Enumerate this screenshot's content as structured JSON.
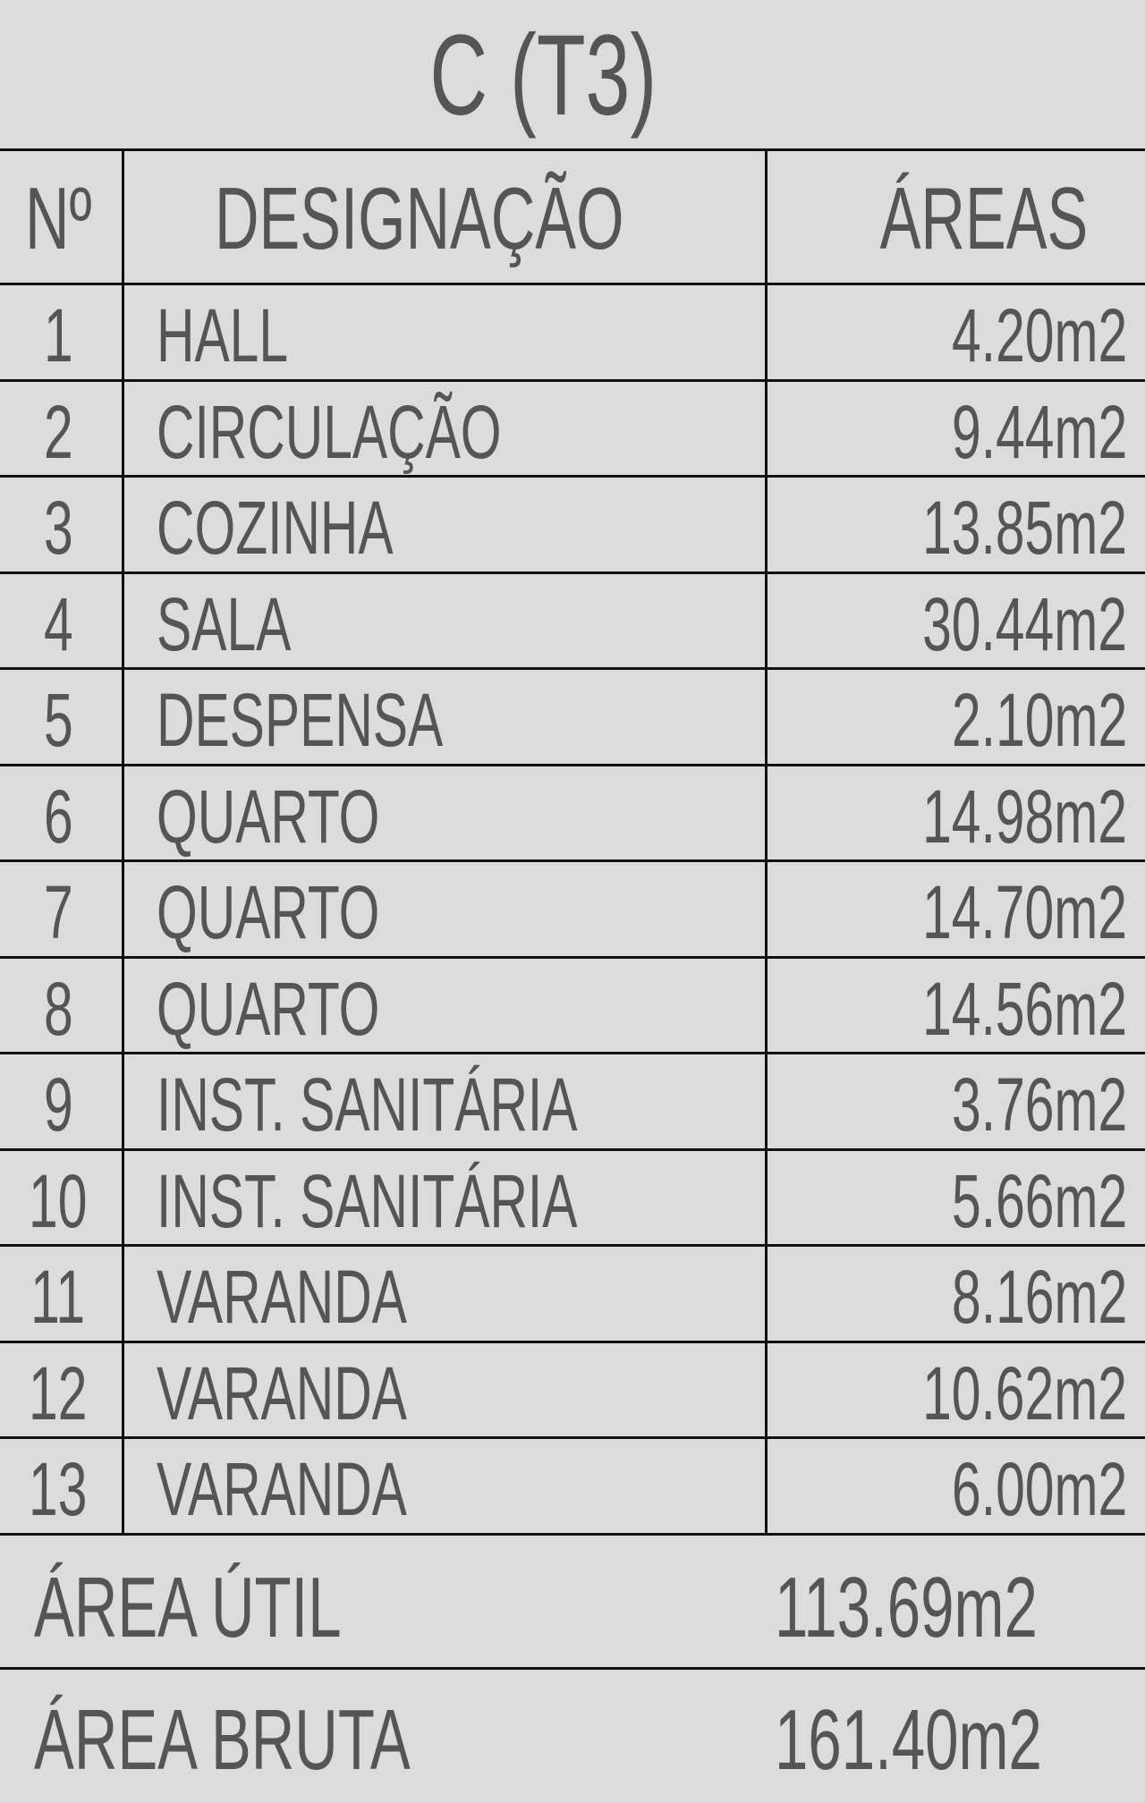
{
  "title": "C (T3)",
  "headers": {
    "number": "Nº",
    "designation": "DESIGNAÇÃO",
    "areas": "ÁREAS"
  },
  "rows": [
    {
      "n": "1",
      "name": "HALL",
      "area": "4.20m2"
    },
    {
      "n": "2",
      "name": "CIRCULAÇÃO",
      "area": "9.44m2"
    },
    {
      "n": "3",
      "name": "COZINHA",
      "area": "13.85m2"
    },
    {
      "n": "4",
      "name": "SALA",
      "area": "30.44m2"
    },
    {
      "n": "5",
      "name": "DESPENSA",
      "area": "2.10m2"
    },
    {
      "n": "6",
      "name": "QUARTO",
      "area": "14.98m2"
    },
    {
      "n": "7",
      "name": "QUARTO",
      "area": "14.70m2"
    },
    {
      "n": "8",
      "name": "QUARTO",
      "area": "14.56m2"
    },
    {
      "n": "9",
      "name": "INST. SANITÁRIA",
      "area": "3.76m2"
    },
    {
      "n": "10",
      "name": "INST. SANITÁRIA",
      "area": "5.66m2"
    },
    {
      "n": "11",
      "name": "VARANDA",
      "area": "8.16m2"
    },
    {
      "n": "12",
      "name": "VARANDA",
      "area": "10.62m2"
    },
    {
      "n": "13",
      "name": "VARANDA",
      "area": "6.00m2"
    }
  ],
  "totals": {
    "useful_label": "ÁREA ÚTIL",
    "useful_value": "113.69m2",
    "gross_label": "ÁREA BRUTA",
    "gross_value": "161.40m2"
  }
}
